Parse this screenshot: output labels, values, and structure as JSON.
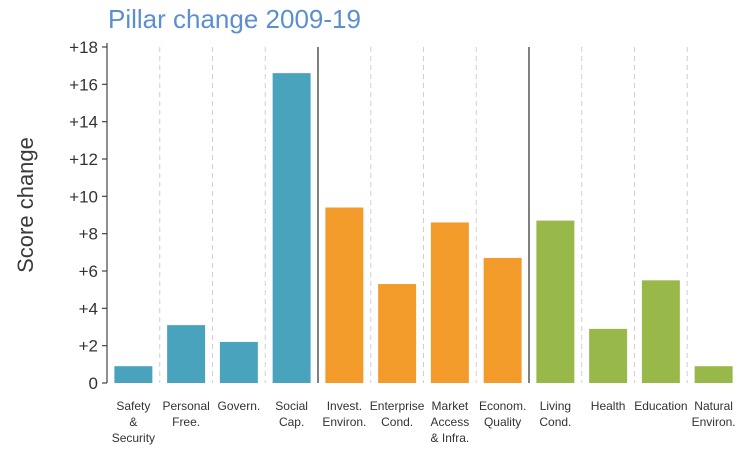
{
  "chart_data": {
    "type": "bar",
    "title": "Pillar change 2009-19",
    "ylabel": "Score change",
    "xlabel": "",
    "ylim": [
      0,
      18
    ],
    "yticks": [
      "0",
      "+2",
      "+4",
      "+6",
      "+8",
      "+10",
      "+12",
      "+14",
      "+16",
      "+18"
    ],
    "grid": "vertical dashed",
    "categories": [
      [
        "Safety",
        "&",
        "Security"
      ],
      [
        "Personal",
        "Free."
      ],
      [
        "Govern."
      ],
      [
        "Social",
        "Cap."
      ],
      [
        "Invest.",
        "Environ."
      ],
      [
        "Enterprise",
        "Cond."
      ],
      [
        "Market",
        "Access",
        "& Infra."
      ],
      [
        "Econom.",
        "Quality"
      ],
      [
        "Living",
        "Cond."
      ],
      [
        "Health"
      ],
      [
        "Education"
      ],
      [
        "Natural",
        "Environ."
      ]
    ],
    "values": [
      0.9,
      3.1,
      2.2,
      16.6,
      9.4,
      5.3,
      8.6,
      6.7,
      8.7,
      2.9,
      5.5,
      0.9
    ],
    "groups": [
      {
        "count": 4,
        "color": "#4aa3bd"
      },
      {
        "count": 4,
        "color": "#f29a2a"
      },
      {
        "count": 4,
        "color": "#99b84a"
      }
    ]
  }
}
